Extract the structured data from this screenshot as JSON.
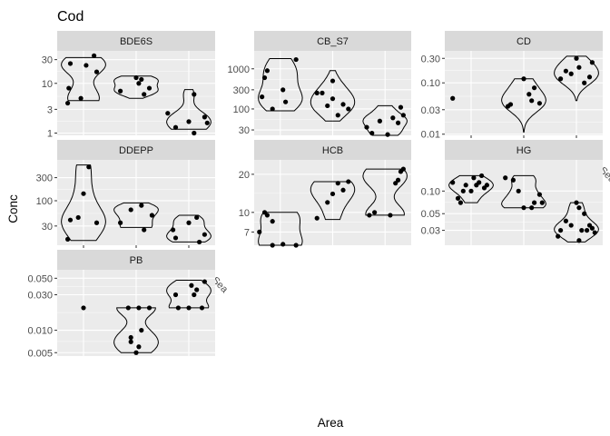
{
  "chart_data": {
    "type": "violin",
    "title": "Cod",
    "xlabel": "Area",
    "ylabel": "Conc",
    "categories": [
      "North Sea",
      "Norw. Sea",
      "Barents Sea"
    ],
    "scale": "log10",
    "facets": [
      {
        "name": "BDE6S",
        "ylim": [
          0.9,
          45
        ],
        "ticks": [
          1,
          3,
          10,
          30
        ],
        "tick_labels": [
          "1",
          "3",
          "10",
          "30"
        ],
        "groups": [
          {
            "violin_range": [
              4.5,
              33
            ],
            "points": [
              [
                -0.3,
                4
              ],
              [
                -0.25,
                25
              ],
              [
                -0.28,
                8
              ],
              [
                -0.05,
                5
              ],
              [
                0.05,
                23
              ],
              [
                0.2,
                36
              ],
              [
                0.25,
                17
              ]
            ]
          },
          {
            "violin_range": [
              5,
              14
            ],
            "points": [
              [
                -0.3,
                7
              ],
              [
                0.0,
                13
              ],
              [
                0.05,
                10
              ],
              [
                0.15,
                6
              ],
              [
                0.25,
                8
              ],
              [
                0.1,
                12
              ]
            ]
          },
          {
            "violin_range": [
              1.2,
              7.5
            ],
            "points": [
              [
                -0.4,
                2.5
              ],
              [
                -0.25,
                1.3
              ],
              [
                0.0,
                1.7
              ],
              [
                0.1,
                1.0
              ],
              [
                0.3,
                2.1
              ],
              [
                0.1,
                6
              ],
              [
                0.35,
                1.6
              ]
            ]
          }
        ]
      },
      {
        "name": "CB_S7",
        "ylim": [
          22,
          2800
        ],
        "ticks": [
          30,
          100,
          300,
          1000
        ],
        "tick_labels": [
          "30",
          "100",
          "300",
          "1000"
        ],
        "groups": [
          {
            "violin_range": [
              90,
              1800
            ],
            "points": [
              [
                -0.35,
                200
              ],
              [
                -0.3,
                600
              ],
              [
                -0.25,
                900
              ],
              [
                -0.15,
                100
              ],
              [
                0.05,
                300
              ],
              [
                0.1,
                150
              ],
              [
                0.3,
                1700
              ]
            ]
          },
          {
            "violin_range": [
              50,
              900
            ],
            "points": [
              [
                -0.3,
                250
              ],
              [
                -0.2,
                250
              ],
              [
                -0.1,
                120
              ],
              [
                0.0,
                180
              ],
              [
                0.1,
                70
              ],
              [
                0.2,
                130
              ],
              [
                0.3,
                100
              ],
              [
                0.0,
                500
              ]
            ]
          },
          {
            "violin_range": [
              22,
              120
            ],
            "points": [
              [
                -0.35,
                35
              ],
              [
                -0.25,
                25
              ],
              [
                -0.1,
                50
              ],
              [
                0.05,
                23
              ],
              [
                0.15,
                60
              ],
              [
                0.25,
                45
              ],
              [
                0.35,
                70
              ],
              [
                0.3,
                110
              ]
            ]
          }
        ]
      },
      {
        "name": "CD",
        "ylim": [
          0.0095,
          0.42
        ],
        "ticks": [
          0.01,
          0.03,
          0.1,
          0.3
        ],
        "tick_labels": [
          "0.01",
          "0.03",
          "0.10",
          "0.30"
        ],
        "groups": [
          {
            "violin_range": null,
            "points": [
              [
                -0.35,
                0.05
              ]
            ]
          },
          {
            "violin_range": [
              0.011,
              0.12
            ],
            "points": [
              [
                -0.3,
                0.035
              ],
              [
                -0.25,
                0.038
              ],
              [
                0.0,
                0.12
              ],
              [
                0.1,
                0.06
              ],
              [
                0.2,
                0.08
              ],
              [
                0.3,
                0.04
              ],
              [
                0.15,
                0.045
              ]
            ]
          },
          {
            "violin_range": [
              0.045,
              0.33
            ],
            "points": [
              [
                -0.3,
                0.12
              ],
              [
                -0.2,
                0.17
              ],
              [
                -0.1,
                0.15
              ],
              [
                0.0,
                0.3
              ],
              [
                0.05,
                0.2
              ],
              [
                0.15,
                0.1
              ],
              [
                0.25,
                0.13
              ],
              [
                0.3,
                0.25
              ]
            ]
          }
        ]
      },
      {
        "name": "DDEPP",
        "ylim": [
          12,
          700
        ],
        "ticks": [
          30,
          100,
          300
        ],
        "tick_labels": [
          "30",
          "100",
          "300"
        ],
        "groups": [
          {
            "violin_range": [
              15,
              550
            ],
            "points": [
              [
                -0.3,
                16
              ],
              [
                -0.25,
                40
              ],
              [
                -0.1,
                45
              ],
              [
                0.0,
                140
              ],
              [
                0.1,
                500
              ],
              [
                0.25,
                35
              ]
            ]
          },
          {
            "violin_range": [
              28,
              90
            ],
            "points": [
              [
                -0.3,
                35
              ],
              [
                -0.1,
                65
              ],
              [
                0.1,
                80
              ],
              [
                0.15,
                25
              ],
              [
                0.3,
                50
              ]
            ]
          },
          {
            "violin_range": [
              14,
              50
            ],
            "points": [
              [
                -0.3,
                25
              ],
              [
                -0.25,
                17
              ],
              [
                0.0,
                35
              ],
              [
                0.15,
                45
              ],
              [
                0.3,
                20
              ],
              [
                0.2,
                14
              ]
            ]
          }
        ]
      },
      {
        "name": "HCB",
        "ylim": [
          5.5,
          26
        ],
        "ticks": [
          7,
          10,
          20
        ],
        "tick_labels": [
          "7",
          "10",
          "20"
        ],
        "groups": [
          {
            "violin_range": [
              5.5,
              10
            ],
            "points": [
              [
                -0.4,
                7
              ],
              [
                -0.3,
                10
              ],
              [
                -0.25,
                9.5
              ],
              [
                -0.15,
                8.5
              ],
              [
                -0.15,
                5.5
              ],
              [
                0.05,
                5.6
              ],
              [
                0.3,
                5.5
              ]
            ]
          },
          {
            "violin_range": [
              8.8,
              17.5
            ],
            "points": [
              [
                -0.3,
                9
              ],
              [
                -0.1,
                12
              ],
              [
                0.0,
                14
              ],
              [
                0.1,
                17
              ],
              [
                0.2,
                15
              ],
              [
                0.3,
                17.5
              ]
            ]
          },
          {
            "violin_range": [
              9.5,
              22
            ],
            "points": [
              [
                -0.3,
                9.5
              ],
              [
                -0.2,
                10
              ],
              [
                0.1,
                9.5
              ],
              [
                0.2,
                17
              ],
              [
                0.25,
                18
              ],
              [
                0.3,
                21
              ],
              [
                0.35,
                22
              ]
            ]
          }
        ]
      },
      {
        "name": "HG",
        "ylim": [
          0.019,
          0.26
        ],
        "ticks": [
          0.03,
          0.05,
          0.1
        ],
        "tick_labels": [
          "0.03",
          "0.05",
          "0.10"
        ],
        "groups": [
          {
            "violin_range": [
              0.07,
              0.16
            ],
            "points": [
              [
                -0.35,
                0.13
              ],
              [
                -0.25,
                0.08
              ],
              [
                -0.2,
                0.07
              ],
              [
                -0.15,
                0.1
              ],
              [
                -0.1,
                0.12
              ],
              [
                0.0,
                0.1
              ],
              [
                0.05,
                0.15
              ],
              [
                0.1,
                0.12
              ],
              [
                0.15,
                0.13
              ],
              [
                0.2,
                0.16
              ],
              [
                0.25,
                0.11
              ],
              [
                0.3,
                0.12
              ]
            ]
          },
          {
            "violin_range": [
              0.06,
              0.16
            ],
            "points": [
              [
                -0.35,
                0.15
              ],
              [
                -0.2,
                0.14
              ],
              [
                -0.1,
                0.1
              ],
              [
                0.0,
                0.06
              ],
              [
                0.15,
                0.06
              ],
              [
                0.2,
                0.07
              ],
              [
                0.3,
                0.09
              ],
              [
                0.35,
                0.07
              ]
            ]
          },
          {
            "violin_range": [
              0.021,
              0.07
            ],
            "points": [
              [
                -0.35,
                0.025
              ],
              [
                -0.3,
                0.03
              ],
              [
                -0.2,
                0.04
              ],
              [
                -0.1,
                0.035
              ],
              [
                0.0,
                0.07
              ],
              [
                0.05,
                0.06
              ],
              [
                0.1,
                0.03
              ],
              [
                0.15,
                0.05
              ],
              [
                0.2,
                0.03
              ],
              [
                0.25,
                0.035
              ],
              [
                0.3,
                0.032
              ],
              [
                0.35,
                0.028
              ],
              [
                0.05,
                0.022
              ]
            ]
          }
        ]
      },
      {
        "name": "PB",
        "ylim": [
          0.0045,
          0.065
        ],
        "ticks": [
          0.005,
          0.01,
          0.03,
          0.05
        ],
        "tick_labels": [
          "0.005",
          "0.010",
          "0.030",
          "0.050"
        ],
        "groups": [
          {
            "violin_range": null,
            "points": [
              [
                0.0,
                0.02
              ]
            ]
          },
          {
            "violin_range": [
              0.005,
              0.02
            ],
            "points": [
              [
                -0.15,
                0.02
              ],
              [
                -0.1,
                0.008
              ],
              [
                -0.1,
                0.007
              ],
              [
                0.0,
                0.005
              ],
              [
                0.05,
                0.02
              ],
              [
                0.1,
                0.01
              ],
              [
                0.25,
                0.02
              ],
              [
                0.05,
                0.006
              ]
            ]
          },
          {
            "violin_range": [
              0.02,
              0.047
            ],
            "points": [
              [
                -0.25,
                0.03
              ],
              [
                -0.2,
                0.02
              ],
              [
                0.0,
                0.02
              ],
              [
                0.05,
                0.04
              ],
              [
                0.1,
                0.03
              ],
              [
                0.15,
                0.035
              ],
              [
                0.25,
                0.02
              ],
              [
                0.3,
                0.045
              ]
            ]
          }
        ]
      }
    ]
  }
}
